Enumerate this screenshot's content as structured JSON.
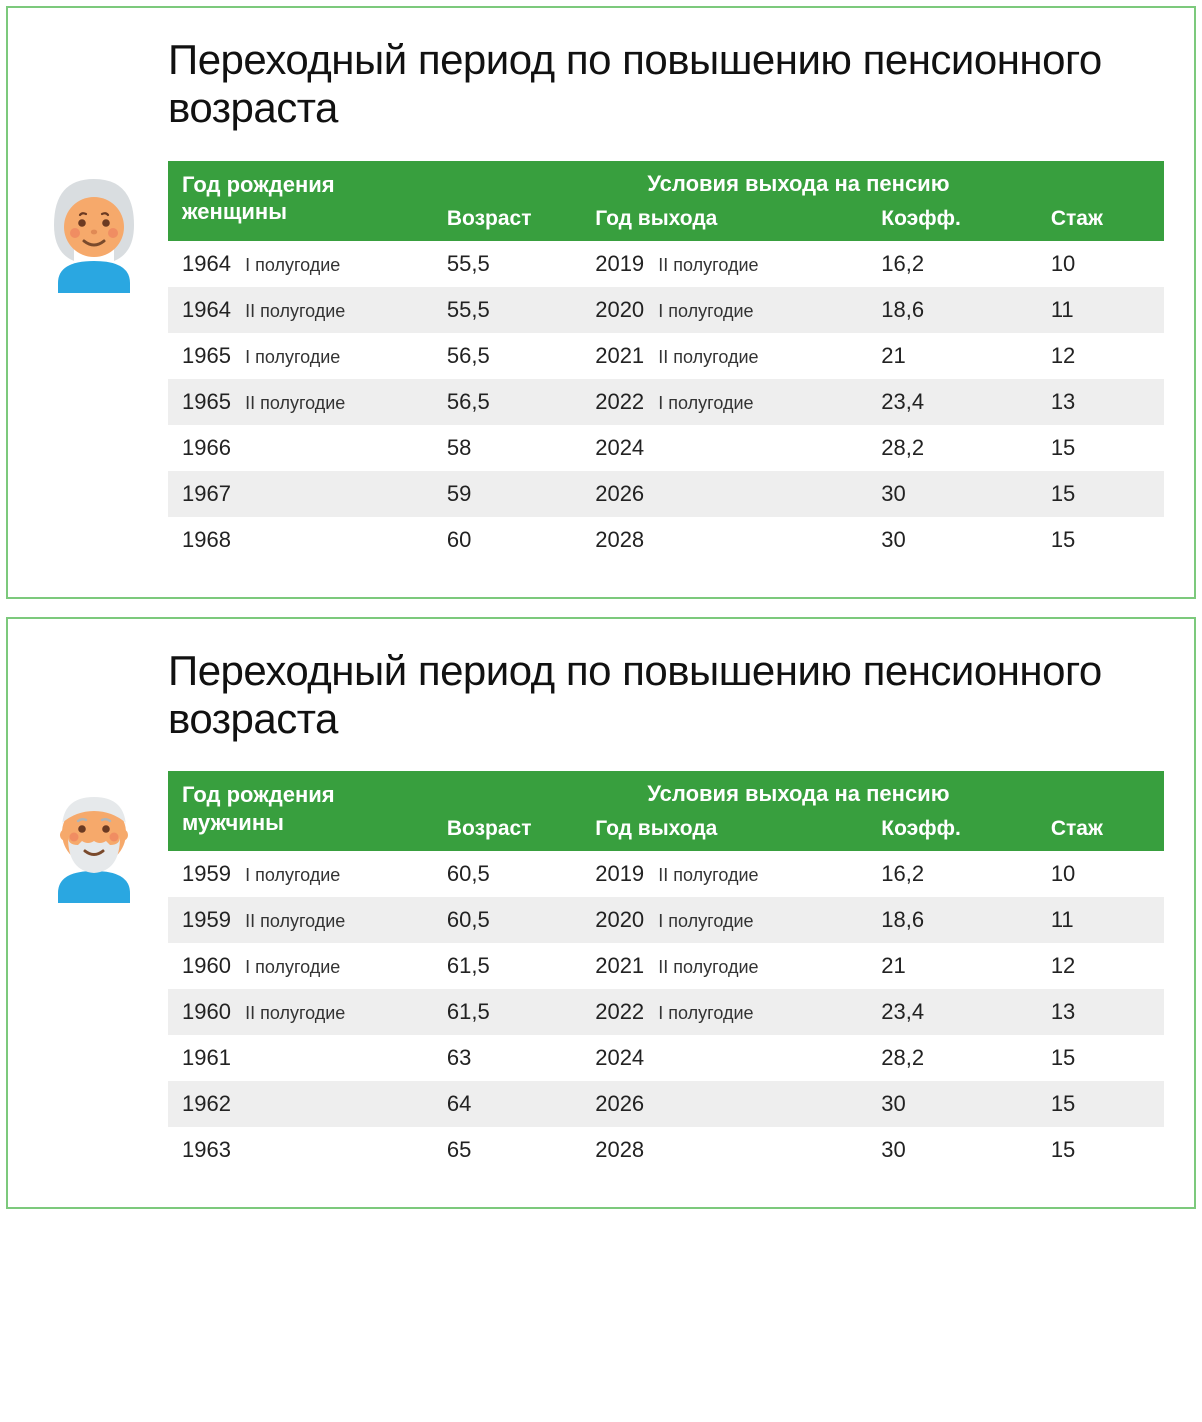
{
  "colors": {
    "panel_border": "#7cc97c",
    "header_bg": "#389f3e",
    "header_text": "#ffffff",
    "row_alt_bg": "#eeeeee",
    "text": "#222222",
    "avatar_skin": "#f6a96b",
    "avatar_shirt": "#2aa7e1",
    "woman_hair": "#d9dde0",
    "man_hair": "#e6e9eb",
    "blush": "#ef8a62",
    "smile": "#7a4a2c"
  },
  "title_fontsize": 42,
  "body_fontsize": 22,
  "panels": [
    {
      "title": "Переходный период по повышению пенсионного возраста",
      "avatar": "woman",
      "header": {
        "first_line1": "Год рождения",
        "first_line2": "женщины",
        "group": "Условия выхода на пенсию",
        "sub": [
          "Возраст",
          "Год выхода",
          "Коэфф.",
          "Стаж"
        ]
      },
      "rows": [
        {
          "birth_year": "1964",
          "birth_half": "I полугодие",
          "age": "55,5",
          "exit_year": "2019",
          "exit_half": "II полугодие",
          "coef": "16,2",
          "exp": "10"
        },
        {
          "birth_year": "1964",
          "birth_half": "II полугодие",
          "age": "55,5",
          "exit_year": "2020",
          "exit_half": "I полугодие",
          "coef": "18,6",
          "exp": "11"
        },
        {
          "birth_year": "1965",
          "birth_half": "I полугодие",
          "age": "56,5",
          "exit_year": "2021",
          "exit_half": "II полугодие",
          "coef": "21",
          "exp": "12"
        },
        {
          "birth_year": "1965",
          "birth_half": "II полугодие",
          "age": "56,5",
          "exit_year": "2022",
          "exit_half": "I полугодие",
          "coef": "23,4",
          "exp": "13"
        },
        {
          "birth_year": "1966",
          "birth_half": "",
          "age": "58",
          "exit_year": "2024",
          "exit_half": "",
          "coef": "28,2",
          "exp": "15"
        },
        {
          "birth_year": "1967",
          "birth_half": "",
          "age": "59",
          "exit_year": "2026",
          "exit_half": "",
          "coef": "30",
          "exp": "15"
        },
        {
          "birth_year": "1968",
          "birth_half": "",
          "age": "60",
          "exit_year": "2028",
          "exit_half": "",
          "coef": "30",
          "exp": "15"
        }
      ]
    },
    {
      "title": "Переходный период по повышению пенсионного возраста",
      "avatar": "man",
      "header": {
        "first_line1": "Год рождения",
        "first_line2": "мужчины",
        "group": "Условия выхода на пенсию",
        "sub": [
          "Возраст",
          "Год выхода",
          "Коэфф.",
          "Стаж"
        ]
      },
      "rows": [
        {
          "birth_year": "1959",
          "birth_half": "I полугодие",
          "age": "60,5",
          "exit_year": "2019",
          "exit_half": "II полугодие",
          "coef": "16,2",
          "exp": "10"
        },
        {
          "birth_year": "1959",
          "birth_half": "II полугодие",
          "age": "60,5",
          "exit_year": "2020",
          "exit_half": "I полугодие",
          "coef": "18,6",
          "exp": "11"
        },
        {
          "birth_year": "1960",
          "birth_half": "I полугодие",
          "age": "61,5",
          "exit_year": "2021",
          "exit_half": "II полугодие",
          "coef": "21",
          "exp": "12"
        },
        {
          "birth_year": "1960",
          "birth_half": "II полугодие",
          "age": "61,5",
          "exit_year": "2022",
          "exit_half": "I полугодие",
          "coef": "23,4",
          "exp": "13"
        },
        {
          "birth_year": "1961",
          "birth_half": "",
          "age": "63",
          "exit_year": "2024",
          "exit_half": "",
          "coef": "28,2",
          "exp": "15"
        },
        {
          "birth_year": "1962",
          "birth_half": "",
          "age": "64",
          "exit_year": "2026",
          "exit_half": "",
          "coef": "30",
          "exp": "15"
        },
        {
          "birth_year": "1963",
          "birth_half": "",
          "age": "65",
          "exit_year": "2028",
          "exit_half": "",
          "coef": "30",
          "exp": "15"
        }
      ]
    }
  ]
}
